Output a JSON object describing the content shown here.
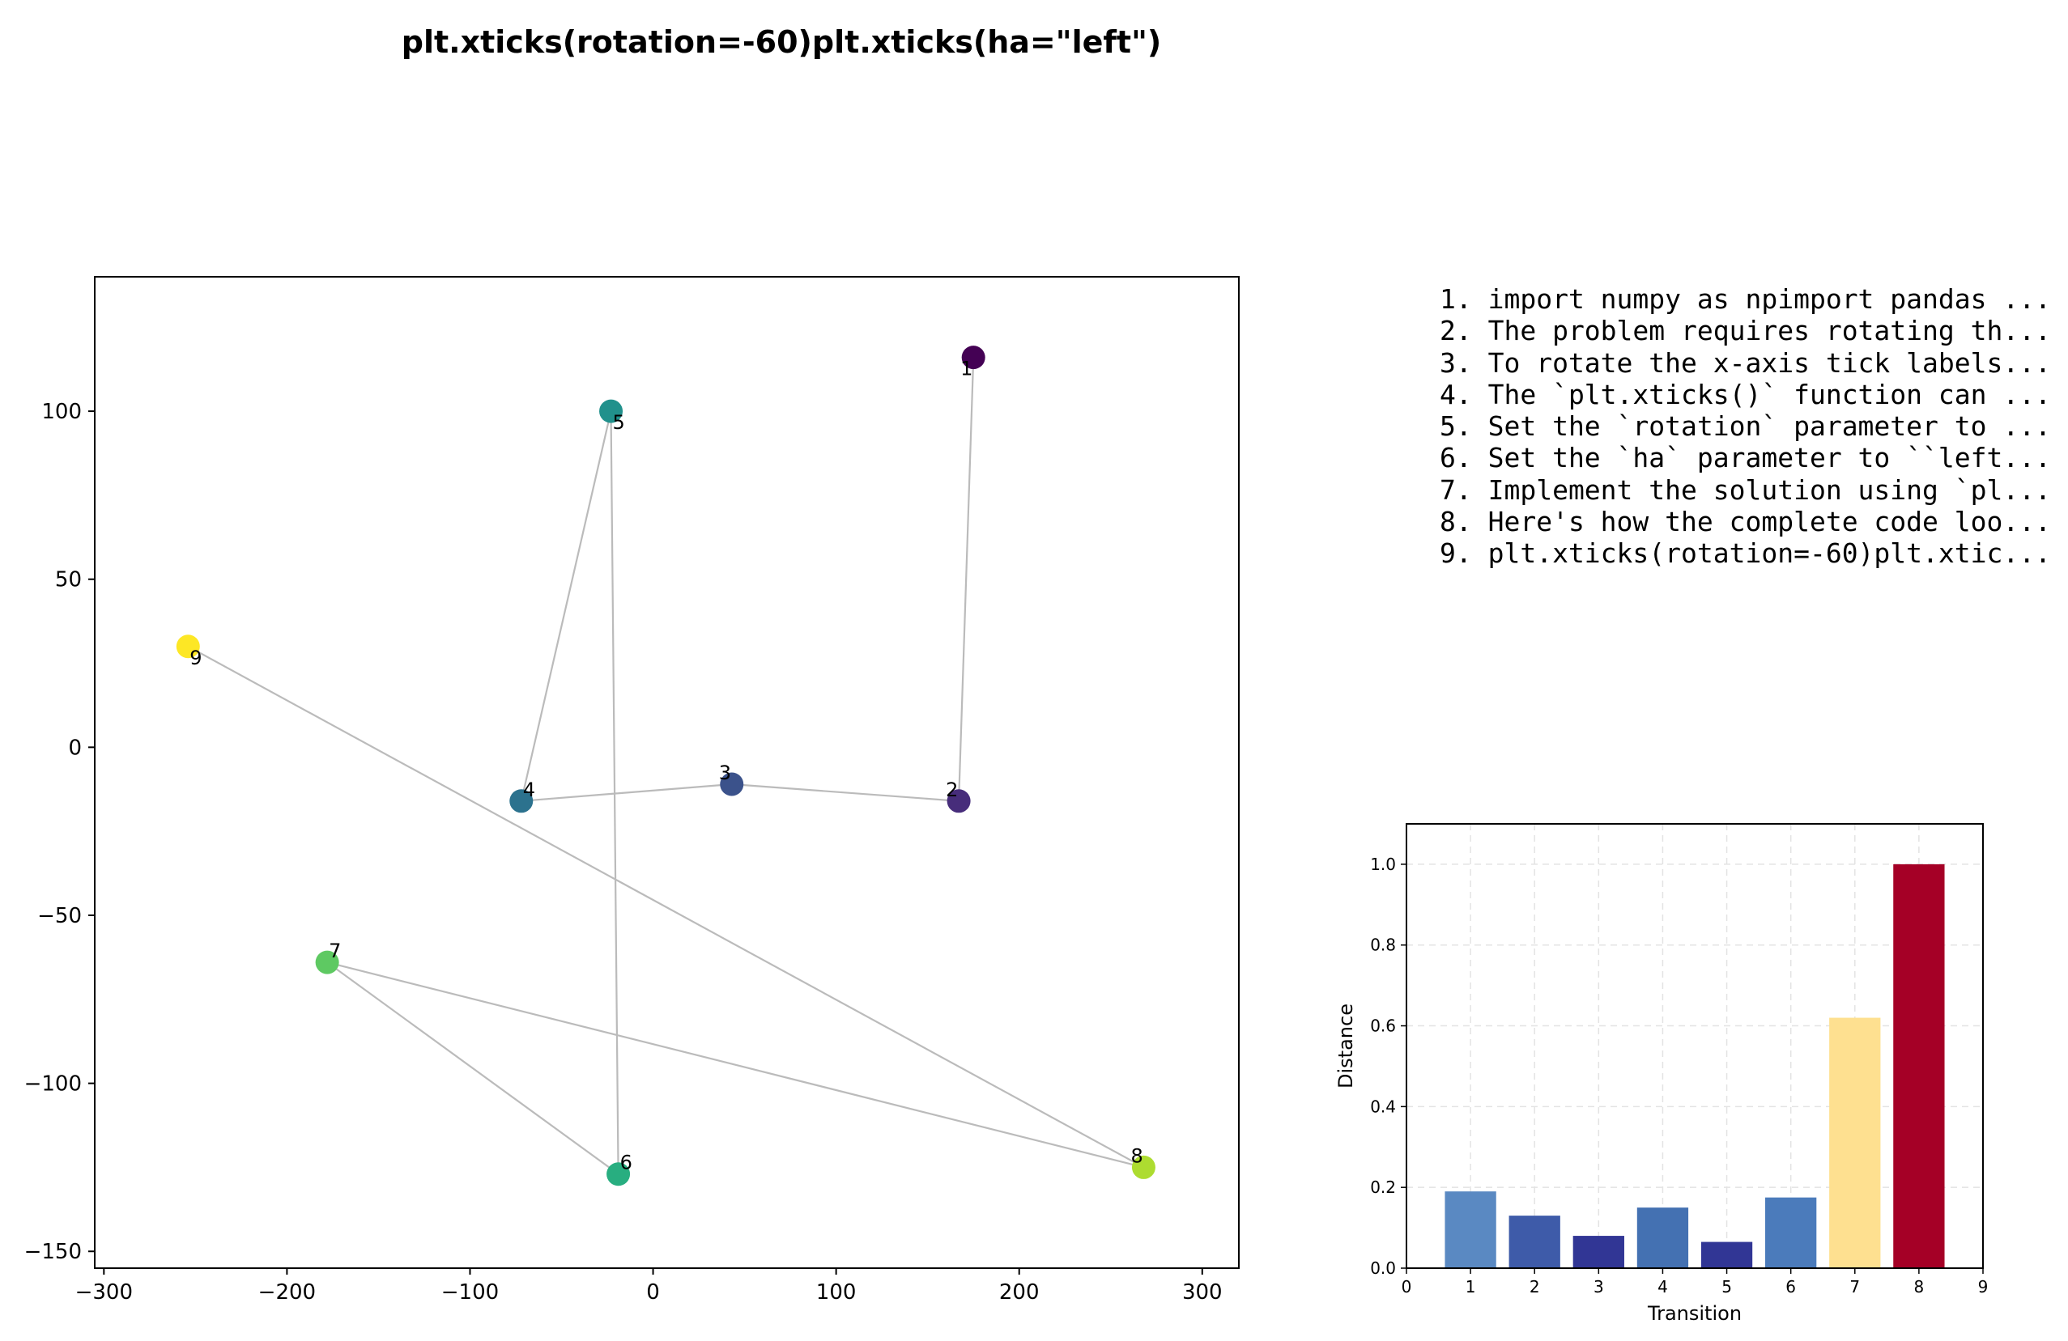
{
  "title": "plt.xticks(rotation=-60)plt.xticks(ha=\"left\")",
  "steps": [
    "1. import numpy as npimport pandas ...",
    "2. The problem requires rotating th...",
    "3. To rotate the x-axis tick labels...",
    "4. The `plt.xticks()` function can ...",
    "5. Set the `rotation` parameter to ...",
    "6. Set the `ha` parameter to ``left...",
    "7. Implement the solution using `pl...",
    "8. Here's how the complete code loo...",
    "9. plt.xticks(rotation=-60)plt.xtic..."
  ],
  "chart_data": [
    {
      "type": "scatter",
      "title": "",
      "xlabel": "",
      "ylabel": "",
      "xlim": [
        -305,
        320
      ],
      "ylim": [
        -155,
        140
      ],
      "xticks": [
        -300,
        -200,
        -100,
        0,
        100,
        200,
        300
      ],
      "yticks": [
        -150,
        -100,
        -50,
        0,
        50,
        100
      ],
      "xtick_labels": [
        "−300",
        "−200",
        "−100",
        "0",
        "100",
        "200",
        "300"
      ],
      "ytick_labels": [
        "−150",
        "−100",
        "−50",
        "0",
        "50",
        "100"
      ],
      "grid": false,
      "connected_in_order": true,
      "line_color": "#bbbbbb",
      "colormap": "viridis",
      "points": [
        {
          "label": "1",
          "x": 175,
          "y": 116,
          "color": "#440154"
        },
        {
          "label": "2",
          "x": 167,
          "y": -16,
          "color": "#472d7b"
        },
        {
          "label": "3",
          "x": 43,
          "y": -11,
          "color": "#3b528b"
        },
        {
          "label": "4",
          "x": -72,
          "y": -16,
          "color": "#2c728e"
        },
        {
          "label": "5",
          "x": -23,
          "y": 100,
          "color": "#21918c"
        },
        {
          "label": "6",
          "x": -19,
          "y": -127,
          "color": "#28ae80"
        },
        {
          "label": "7",
          "x": -178,
          "y": -64,
          "color": "#5ec962"
        },
        {
          "label": "8",
          "x": 268,
          "y": -125,
          "color": "#addc30"
        },
        {
          "label": "9",
          "x": -254,
          "y": 30,
          "color": "#fde725"
        }
      ]
    },
    {
      "type": "bar",
      "title": "",
      "xlabel": "Transition",
      "ylabel": "Distance",
      "xlim": [
        0,
        9
      ],
      "ylim": [
        0,
        1.1
      ],
      "xticks": [
        0,
        1,
        2,
        3,
        4,
        5,
        6,
        7,
        8,
        9
      ],
      "yticks": [
        0.0,
        0.2,
        0.4,
        0.6,
        0.8,
        1.0
      ],
      "ytick_labels": [
        "0.0",
        "0.2",
        "0.4",
        "0.6",
        "0.8",
        "1.0"
      ],
      "grid": true,
      "categories": [
        1,
        2,
        3,
        4,
        5,
        6,
        7,
        8
      ],
      "values": [
        0.19,
        0.13,
        0.08,
        0.15,
        0.065,
        0.175,
        0.62,
        1.0
      ],
      "colors": [
        "#5a89c2",
        "#3e5ba9",
        "#313695",
        "#4471b2",
        "#313695",
        "#4b7bbb",
        "#fee090",
        "#a50026"
      ]
    }
  ]
}
